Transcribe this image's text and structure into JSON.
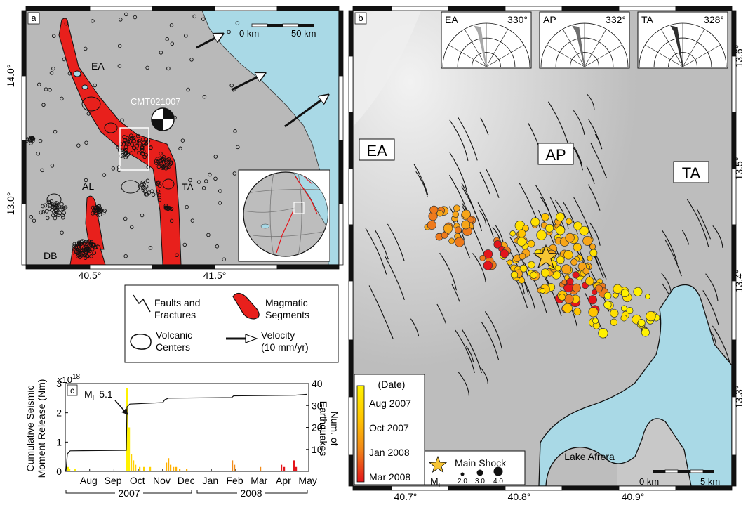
{
  "panel_a": {
    "letter": "a",
    "scale_labels": [
      "0 km",
      "50 km"
    ],
    "lat_ticks": [
      "14.0°",
      "13.0°"
    ],
    "lon_ticks": [
      "40.5°",
      "41.5°"
    ],
    "segments": [
      "EA",
      "AL",
      "TA",
      "DB"
    ],
    "cmt_label": "CMT021007",
    "colors": {
      "land": "#b9b9b9",
      "sea": "#a9d9e6",
      "segment": "#e8201c"
    }
  },
  "legend": {
    "faults": "Faults and Fractures",
    "faults_l1": "Faults and",
    "faults_l2": "Fractures",
    "volcanic_l1": "Volcanic",
    "volcanic_l2": "Centers",
    "magmatic_l1": "Magmatic",
    "magmatic_l2": "Segments",
    "velocity_l1": "Velocity",
    "velocity_l2": "(10 mm/yr)"
  },
  "panel_c": {
    "letter": "c",
    "exponent": "x10",
    "exponent_power": "18",
    "y_left_title_l1": "Cumulative Seismic",
    "y_left_title_l2": "Moment Release (Nm)",
    "y_right_title_l1": "Num. of",
    "y_right_title_l2": "Earthquakes",
    "mainshock_label": "M",
    "mainshock_sub": "L",
    "mainshock_value": "5.1",
    "months": [
      "Aug",
      "Sep",
      "Oct",
      "Nov",
      "Dec",
      "Jan",
      "Feb",
      "Mar",
      "Apr",
      "May"
    ],
    "years": [
      "2007",
      "2008"
    ]
  },
  "chart_data": {
    "type": "line",
    "x": [
      "Jul 2007",
      "Aug 2007",
      "Sep 2007",
      "Oct 2007",
      "Nov 2007",
      "Dec 2007",
      "Jan 2008",
      "Feb 2008",
      "Mar 2008",
      "Apr 2008",
      "May 2008"
    ],
    "series": [
      {
        "values": [
          0.7,
          0.72,
          0.72,
          2.3,
          2.45,
          2.55,
          2.55,
          2.58,
          2.6,
          2.62,
          2.63
        ]
      }
    ],
    "ylim_left": [
      0,
      3
    ],
    "ylim_right": [
      0,
      40
    ],
    "yticks_left": [
      "0",
      "1",
      "2",
      "3"
    ],
    "yticks_right": [
      "10",
      "20",
      "30",
      "40"
    ],
    "grid": false
  },
  "panel_b": {
    "letter": "b",
    "regions": [
      "EA",
      "AP",
      "TA"
    ],
    "lake_label": "Lake Afrera",
    "scale_labels": [
      "0 km",
      "5 km"
    ],
    "lat_ticks": [
      "13.6°",
      "13.5°",
      "13.4°",
      "13.3°"
    ],
    "lon_ticks": [
      "40.7°",
      "40.8°",
      "40.9°"
    ],
    "roses": [
      {
        "name": "EA",
        "angle": "330°",
        "color": "#a8a8a8"
      },
      {
        "name": "AP",
        "angle": "332°",
        "color": "#6e6e6e"
      },
      {
        "name": "TA",
        "angle": "328°",
        "color": "#2f2f2f"
      }
    ],
    "colorbar_title": "(Date)",
    "colorbar_labels": [
      "Aug 2007",
      "Oct 2007",
      "Jan 2008",
      "Mar 2008"
    ],
    "main_shock": "Main Shock",
    "ml_label": "M",
    "ml_sub": "L",
    "ml_sizes": [
      "2.0",
      "3.0",
      "4.0"
    ]
  }
}
